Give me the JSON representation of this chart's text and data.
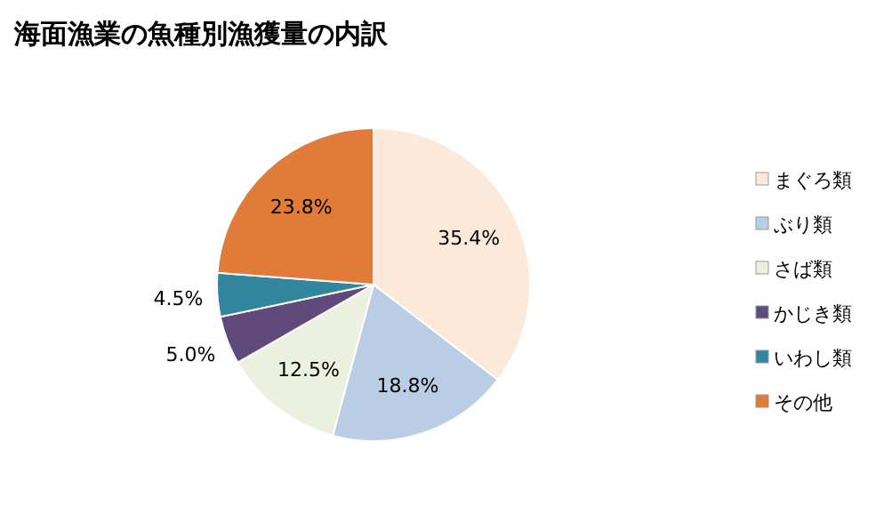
{
  "chart_data": {
    "type": "pie",
    "title": "海面漁業の魚種別漁獲量の内訳",
    "categories": [
      "まぐろ類",
      "ぶり類",
      "さば類",
      "かじき類",
      "いわし類",
      "その他"
    ],
    "values": [
      35.4,
      18.8,
      12.5,
      5.0,
      4.5,
      23.8
    ],
    "colors": [
      "#fde9d9",
      "#b9cde5",
      "#ebf1de",
      "#604a7b",
      "#31859c",
      "#e07b39"
    ],
    "value_labels": [
      "35.4%",
      "18.8%",
      "12.5%",
      "5.0%",
      "4.5%",
      "23.8%"
    ],
    "legend": "right"
  }
}
